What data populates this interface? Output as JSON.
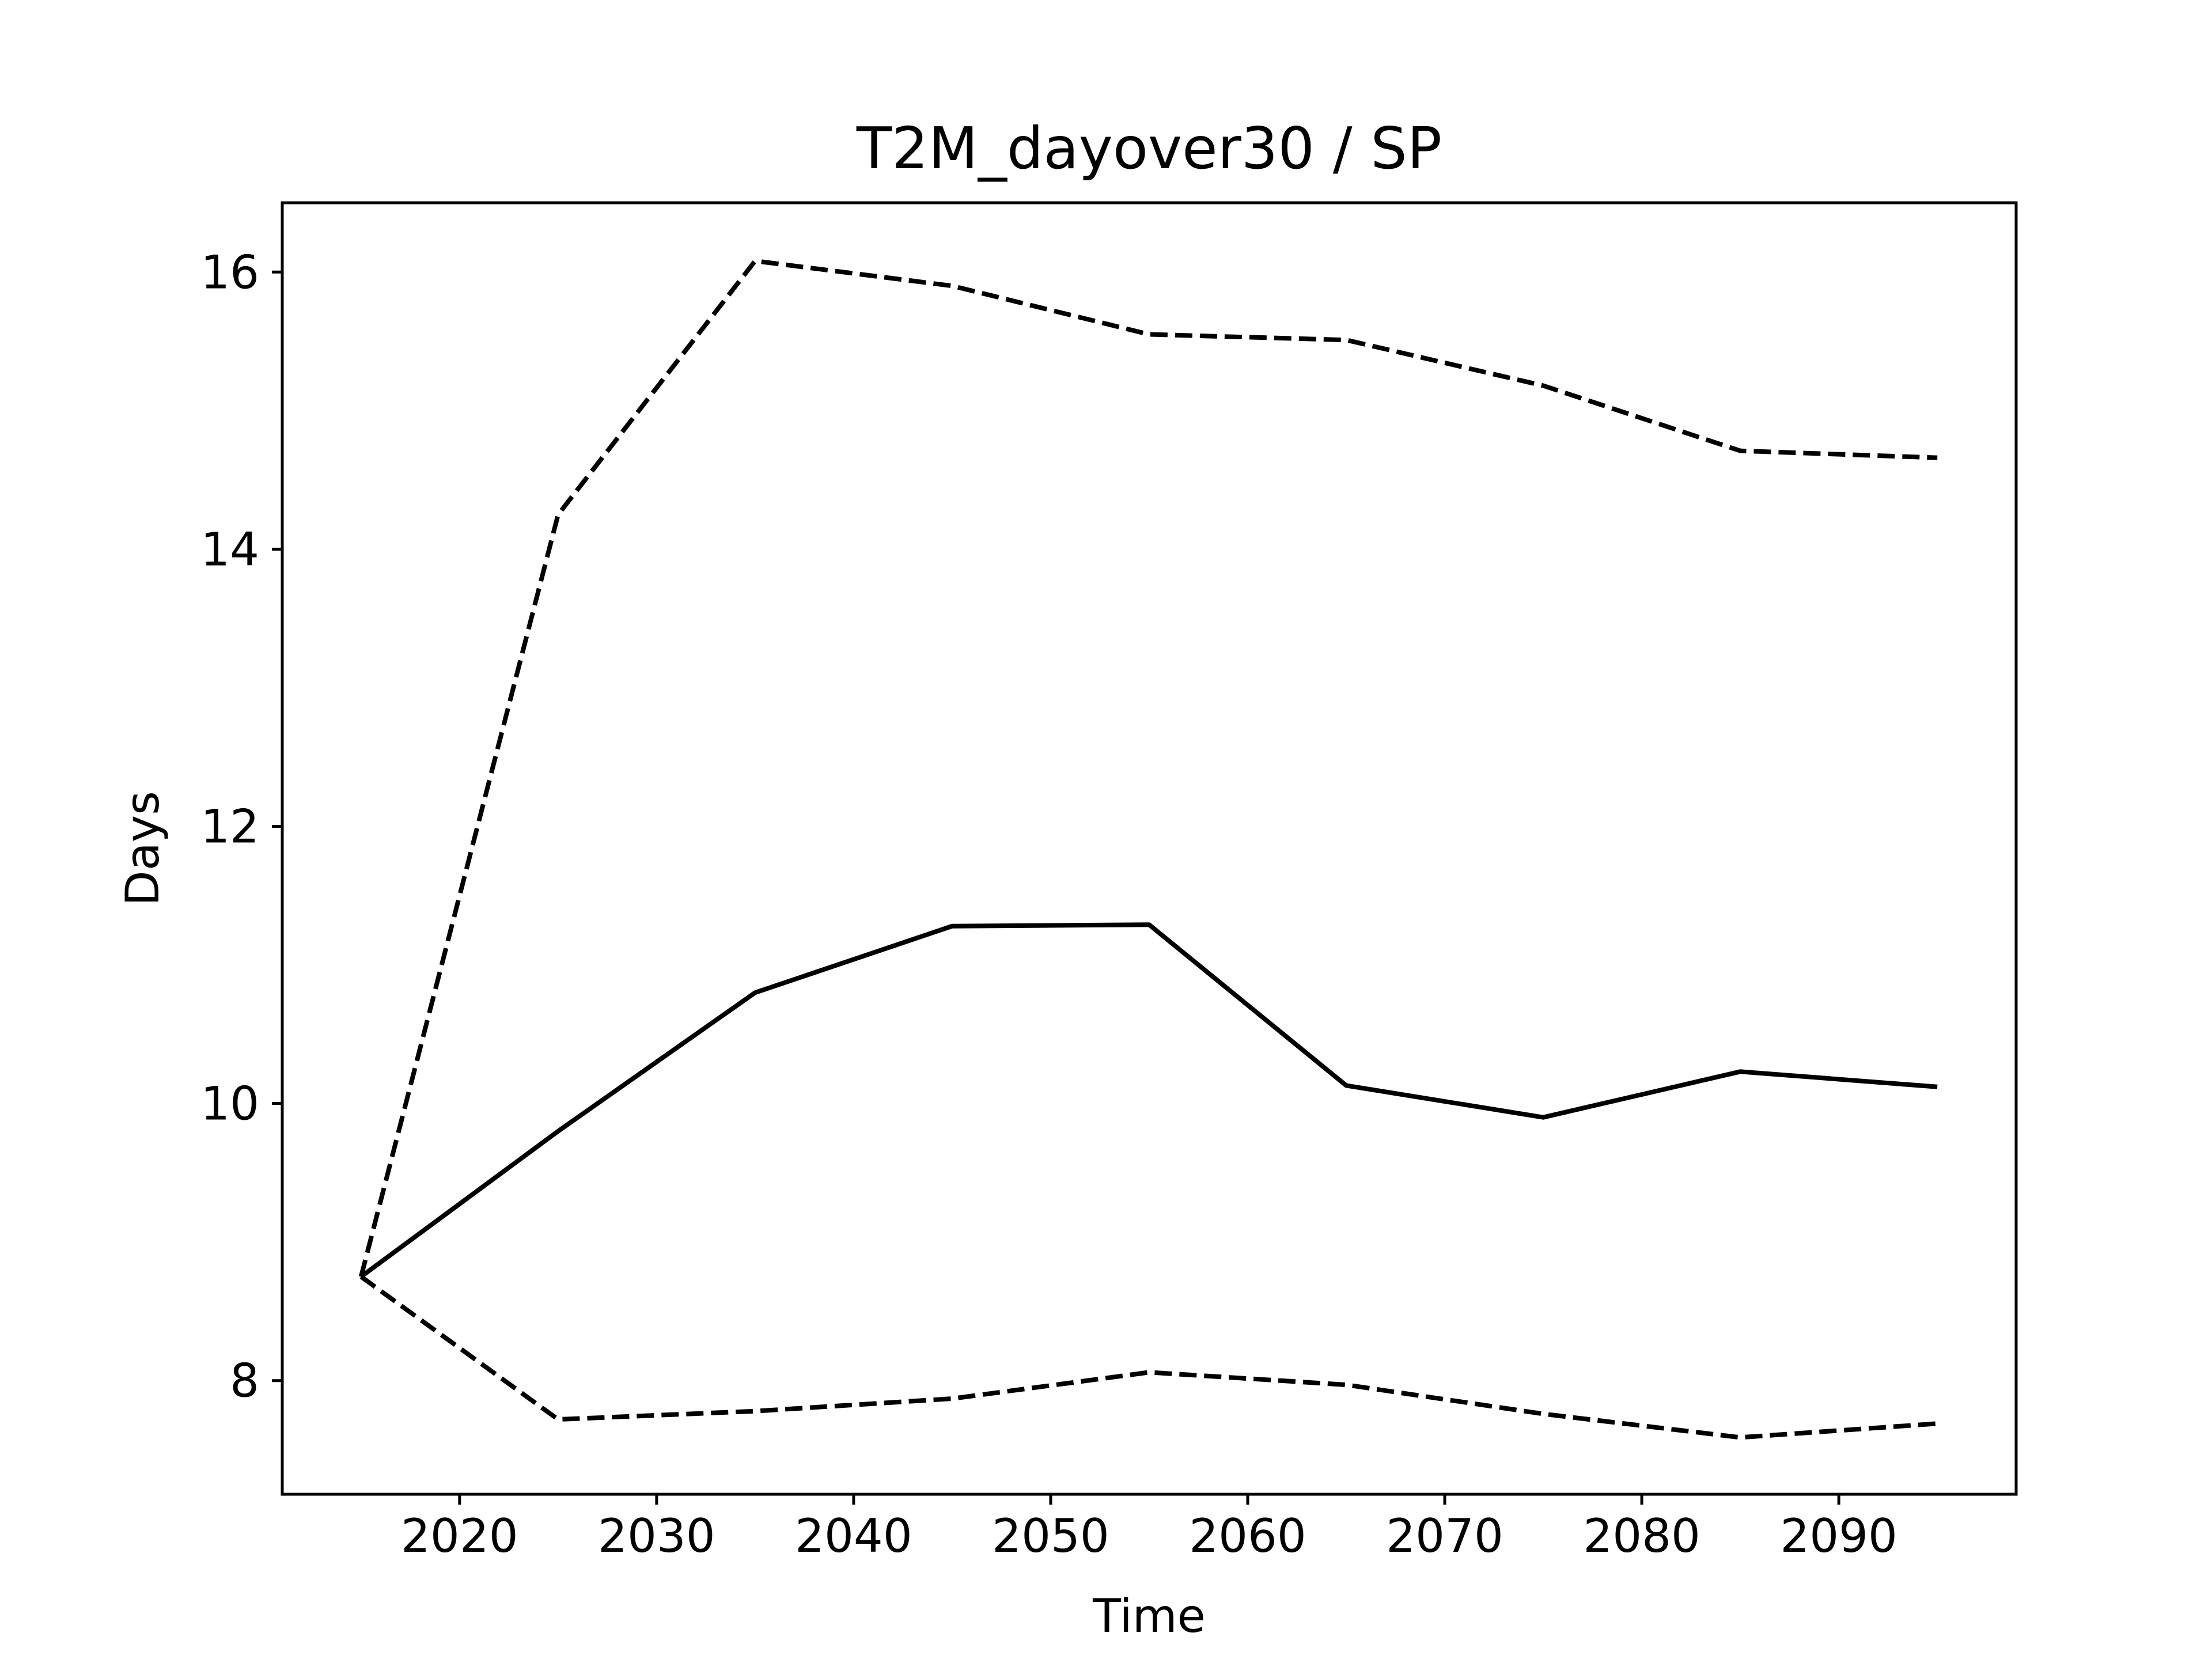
{
  "chart_data": {
    "type": "line",
    "title": "T2M_dayover30 / SP",
    "xlabel": "Time",
    "ylabel": "Days",
    "xlim": [
      2011,
      2099
    ],
    "ylim": [
      7.18,
      16.5
    ],
    "x_ticks": [
      2020,
      2030,
      2040,
      2050,
      2060,
      2070,
      2080,
      2090
    ],
    "y_ticks": [
      8,
      10,
      12,
      14,
      16
    ],
    "grid": false,
    "legend": "none",
    "x": [
      2015,
      2025,
      2035,
      2045,
      2055,
      2065,
      2075,
      2085,
      2095
    ],
    "series": [
      {
        "style": "dashed",
        "color": "#000000",
        "values": [
          8.75,
          14.25,
          16.08,
          15.9,
          15.55,
          15.51,
          15.18,
          14.71,
          14.66
        ]
      },
      {
        "style": "solid",
        "color": "#000000",
        "values": [
          8.75,
          9.8,
          10.8,
          11.28,
          11.29,
          10.13,
          9.9,
          10.23,
          10.12
        ]
      },
      {
        "style": "dashed",
        "color": "#000000",
        "values": [
          8.75,
          7.72,
          7.78,
          7.87,
          8.06,
          7.97,
          7.76,
          7.59,
          7.69
        ]
      }
    ]
  }
}
